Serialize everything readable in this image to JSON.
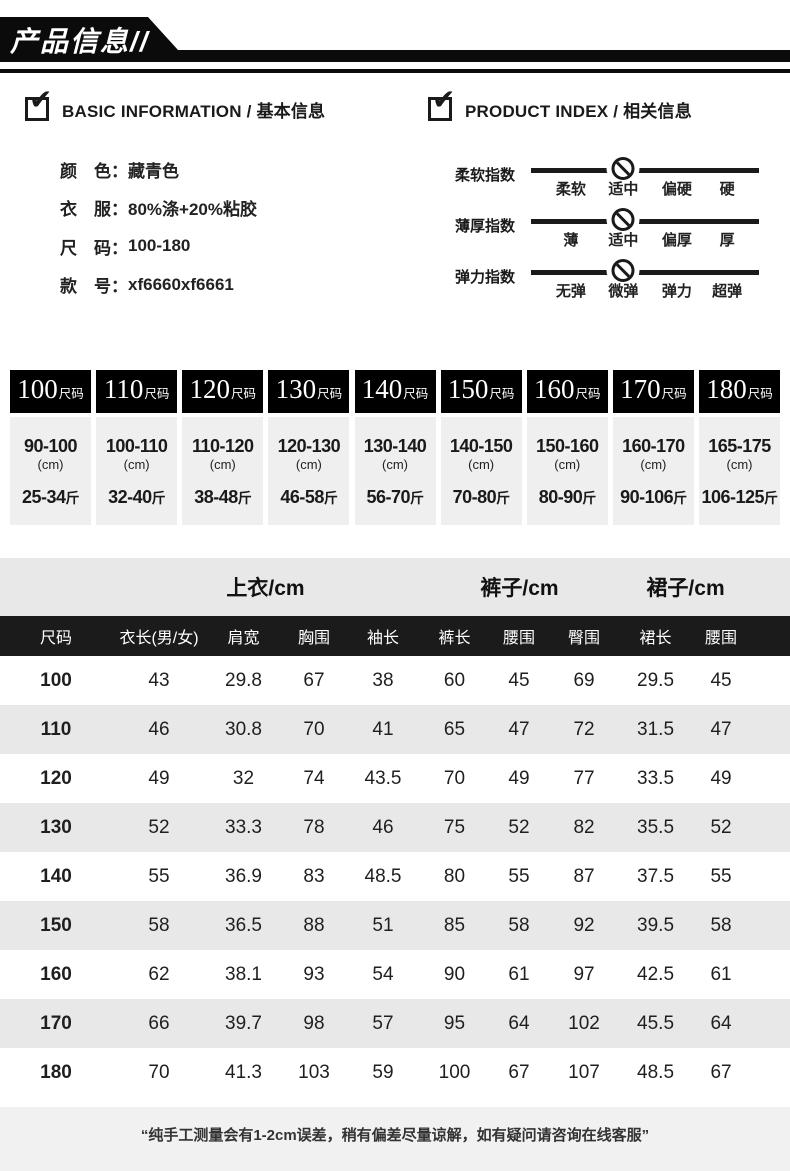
{
  "banner": {
    "title": "产品信息//"
  },
  "sections": {
    "basic": {
      "title": "BASIC INFORMATION / 基本信息",
      "items": [
        {
          "label": "颜　色：",
          "value": "藏青色"
        },
        {
          "label": "衣　服：",
          "value": "80%涤+20%粘胶"
        },
        {
          "label": "尺　码：",
          "value": "100-180"
        },
        {
          "label": "款　号：",
          "value": "xf6660xf6661"
        }
      ]
    },
    "index": {
      "title": "PRODUCT INDEX / 相关信息",
      "rows": [
        {
          "label": "柔软指数",
          "options": [
            "柔软",
            "适中",
            "偏硬",
            "硬"
          ],
          "marker_pos": 1
        },
        {
          "label": "薄厚指数",
          "options": [
            "薄",
            "适中",
            "偏厚",
            "厚"
          ],
          "marker_pos": 1
        },
        {
          "label": "弹力指数",
          "options": [
            "无弹",
            "微弹",
            "弹力",
            "超弹"
          ],
          "marker_pos": 1
        }
      ]
    }
  },
  "size_cards": [
    {
      "size": "100",
      "size_suffix": "尺码",
      "height": "90-100",
      "unit": "(cm)",
      "weight": "25-34",
      "weight_unit": "斤"
    },
    {
      "size": "110",
      "size_suffix": "尺码",
      "height": "100-110",
      "unit": "(cm)",
      "weight": "32-40",
      "weight_unit": "斤"
    },
    {
      "size": "120",
      "size_suffix": "尺码",
      "height": "110-120",
      "unit": "(cm)",
      "weight": "38-48",
      "weight_unit": "斤"
    },
    {
      "size": "130",
      "size_suffix": "尺码",
      "height": "120-130",
      "unit": "(cm)",
      "weight": "46-58",
      "weight_unit": "斤"
    },
    {
      "size": "140",
      "size_suffix": "尺码",
      "height": "130-140",
      "unit": "(cm)",
      "weight": "56-70",
      "weight_unit": "斤"
    },
    {
      "size": "150",
      "size_suffix": "尺码",
      "height": "140-150",
      "unit": "(cm)",
      "weight": "70-80",
      "weight_unit": "斤"
    },
    {
      "size": "160",
      "size_suffix": "尺码",
      "height": "150-160",
      "unit": "(cm)",
      "weight": "80-90",
      "weight_unit": "斤"
    },
    {
      "size": "170",
      "size_suffix": "尺码",
      "height": "160-170",
      "unit": "(cm)",
      "weight": "90-106",
      "weight_unit": "斤"
    },
    {
      "size": "180",
      "size_suffix": "尺码",
      "height": "165-175",
      "unit": "(cm)",
      "weight": "106-125",
      "weight_unit": "斤"
    }
  ],
  "measure_table": {
    "groups": [
      {
        "label": "上衣/cm"
      },
      {
        "label": "裤子/cm"
      },
      {
        "label": "裙子/cm"
      }
    ],
    "headers": [
      "尺码",
      "衣长(男/女)",
      "肩宽",
      "胸围",
      "袖长",
      "裤长",
      "腰围",
      "臀围",
      "裙长",
      "腰围"
    ],
    "rows": [
      [
        "100",
        "43",
        "29.8",
        "67",
        "38",
        "60",
        "45",
        "69",
        "29.5",
        "45"
      ],
      [
        "110",
        "46",
        "30.8",
        "70",
        "41",
        "65",
        "47",
        "72",
        "31.5",
        "47"
      ],
      [
        "120",
        "49",
        "32",
        "74",
        "43.5",
        "70",
        "49",
        "77",
        "33.5",
        "49"
      ],
      [
        "130",
        "52",
        "33.3",
        "78",
        "46",
        "75",
        "52",
        "82",
        "35.5",
        "52"
      ],
      [
        "140",
        "55",
        "36.9",
        "83",
        "48.5",
        "80",
        "55",
        "87",
        "37.5",
        "55"
      ],
      [
        "150",
        "58",
        "36.5",
        "88",
        "51",
        "85",
        "58",
        "92",
        "39.5",
        "58"
      ],
      [
        "160",
        "62",
        "38.1",
        "93",
        "54",
        "90",
        "61",
        "97",
        "42.5",
        "61"
      ],
      [
        "170",
        "66",
        "39.7",
        "98",
        "57",
        "95",
        "64",
        "102",
        "45.5",
        "64"
      ],
      [
        "180",
        "70",
        "41.3",
        "103",
        "59",
        "100",
        "67",
        "107",
        "48.5",
        "67"
      ]
    ]
  },
  "footer": {
    "note": "“纯手工测量会有1-2cm误差，稍有偏差尽量谅解，如有疑问请咨询在线客服”"
  },
  "icons": {
    "section_check": "checkbox-check",
    "index_marker": "no-symbol"
  },
  "colors": {
    "banner_black": "#0b0b0b",
    "card_head_black": "#000000",
    "header_row_black": "#1b1b1b",
    "stripe_gray": "#e8e8e8",
    "card_body_gray": "#efefef",
    "footer_gray": "#f1f1f1"
  }
}
